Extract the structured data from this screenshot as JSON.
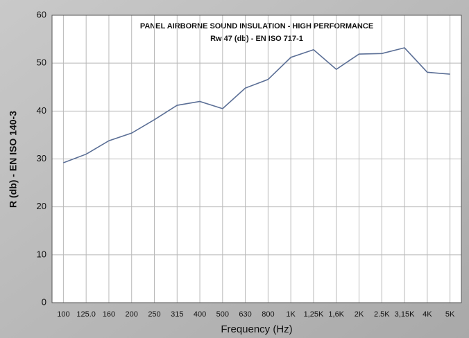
{
  "chart_data": {
    "type": "line",
    "title": "PANEL AIRBORNE SOUND INSULATION - HIGH PERFORMANCE",
    "subtitle": "Rw 47 (db) - EN ISO 717-1",
    "x_label": "Frequency (Hz)",
    "y_label": "R (db) - EN ISO 140-3",
    "categories": [
      "100",
      "125.0",
      "160",
      "200",
      "250",
      "315",
      "400",
      "500",
      "630",
      "800",
      "1K",
      "1,25K",
      "1,6K",
      "2K",
      "2.5K",
      "3,15K",
      "4K",
      "5K"
    ],
    "series": [
      {
        "color": "#5b6f96",
        "values": [
          29.2,
          31,
          33.8,
          35.4,
          38.2,
          41.2,
          42,
          40.5,
          44.8,
          46.6,
          51.2,
          52.8,
          48.7,
          51.9,
          52,
          53.2,
          48.1,
          47.7
        ]
      }
    ],
    "ylim": [
      0,
      60
    ],
    "yticks": [
      0,
      10,
      20,
      30,
      40,
      50,
      60
    ],
    "grid": true
  }
}
